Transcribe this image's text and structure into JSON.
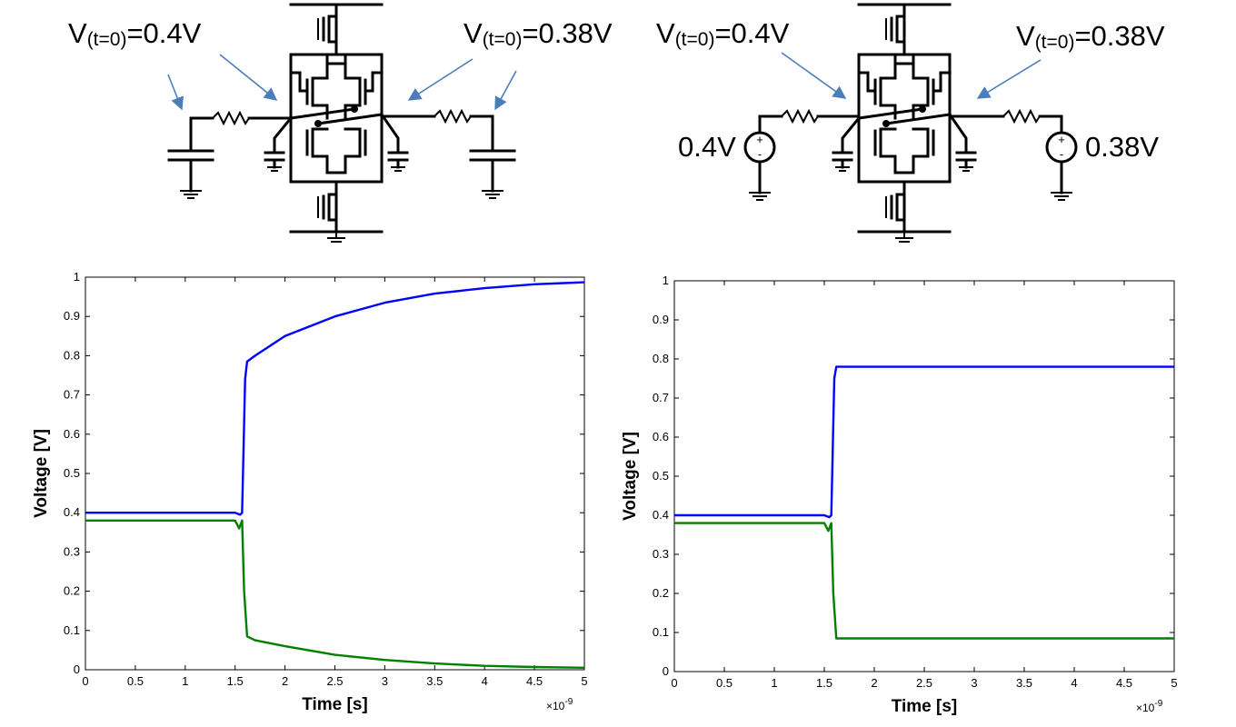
{
  "left_circuit": {
    "label_node_left": {
      "prefix": "V",
      "sub": "(t=0)",
      "suffix": "=0.4V"
    },
    "label_node_right": {
      "prefix": "V",
      "sub": "(t=0)",
      "suffix": "=0.38V"
    }
  },
  "right_circuit": {
    "label_node_left": {
      "prefix": "V",
      "sub": "(t=0)",
      "suffix": "=0.4V"
    },
    "label_node_right": {
      "prefix": "V",
      "sub": "(t=0)",
      "suffix": "=0.38V"
    },
    "source_left_value": "0.4V",
    "source_right_value": "0.38V",
    "source_plus": "+",
    "source_minus": "-"
  },
  "colors": {
    "series_blue": "#0000ff",
    "series_green": "#007f00",
    "arrow": "#4a7ebb"
  },
  "chart_data": [
    {
      "type": "line",
      "xlabel": "Time [s]",
      "ylabel": "Voltage [V]",
      "x_exponent_base": "×10",
      "x_exponent_power": "-9",
      "xlim": [
        0,
        5
      ],
      "ylim": [
        0,
        1
      ],
      "x_ticks": [
        0,
        0.5,
        1,
        1.5,
        2,
        2.5,
        3,
        3.5,
        4,
        4.5,
        5
      ],
      "x_tick_labels": [
        "0",
        "0.5",
        "1",
        "1.5",
        "2",
        "2.5",
        "3",
        "3.5",
        "4",
        "4.5",
        "5"
      ],
      "y_ticks": [
        0,
        0.1,
        0.2,
        0.3,
        0.4,
        0.5,
        0.6,
        0.7,
        0.8,
        0.9,
        1
      ],
      "y_tick_labels": [
        "0",
        "0.1",
        "0.2",
        "0.3",
        "0.4",
        "0.5",
        "0.6",
        "0.7",
        "0.8",
        "0.9",
        "1"
      ],
      "series": [
        {
          "color": "#0000ff",
          "x": [
            0,
            1.5,
            1.55,
            1.57,
            1.6,
            1.62,
            1.7,
            2,
            2.5,
            3,
            3.5,
            4,
            4.5,
            5
          ],
          "y": [
            0.4,
            0.4,
            0.395,
            0.4,
            0.74,
            0.785,
            0.8,
            0.85,
            0.9,
            0.935,
            0.958,
            0.972,
            0.982,
            0.987
          ]
        },
        {
          "color": "#007f00",
          "x": [
            0,
            1.5,
            1.54,
            1.57,
            1.59,
            1.62,
            1.7,
            2,
            2.5,
            3,
            3.5,
            4,
            4.5,
            5
          ],
          "y": [
            0.38,
            0.38,
            0.36,
            0.38,
            0.2,
            0.085,
            0.075,
            0.06,
            0.038,
            0.025,
            0.016,
            0.01,
            0.007,
            0.005
          ]
        }
      ]
    },
    {
      "type": "line",
      "xlabel": "Time [s]",
      "ylabel": "Voltage [V]",
      "x_exponent_base": "×10",
      "x_exponent_power": "-9",
      "xlim": [
        0,
        5
      ],
      "ylim": [
        0,
        1
      ],
      "x_ticks": [
        0,
        0.5,
        1,
        1.5,
        2,
        2.5,
        3,
        3.5,
        4,
        4.5,
        5
      ],
      "x_tick_labels": [
        "0",
        "0.5",
        "1",
        "1.5",
        "2",
        "2.5",
        "3",
        "3.5",
        "4",
        "4.5",
        "5"
      ],
      "y_ticks": [
        0,
        0.1,
        0.2,
        0.3,
        0.4,
        0.5,
        0.6,
        0.7,
        0.8,
        0.9,
        1
      ],
      "y_tick_labels": [
        "0",
        "0.1",
        "0.2",
        "0.3",
        "0.4",
        "0.5",
        "0.6",
        "0.7",
        "0.8",
        "0.9",
        "1"
      ],
      "series": [
        {
          "color": "#0000ff",
          "x": [
            0,
            1.5,
            1.55,
            1.57,
            1.6,
            1.62,
            5
          ],
          "y": [
            0.4,
            0.4,
            0.395,
            0.4,
            0.75,
            0.78,
            0.78
          ]
        },
        {
          "color": "#007f00",
          "x": [
            0,
            1.5,
            1.54,
            1.57,
            1.59,
            1.62,
            5
          ],
          "y": [
            0.38,
            0.38,
            0.36,
            0.38,
            0.2,
            0.085,
            0.085
          ]
        }
      ]
    }
  ]
}
